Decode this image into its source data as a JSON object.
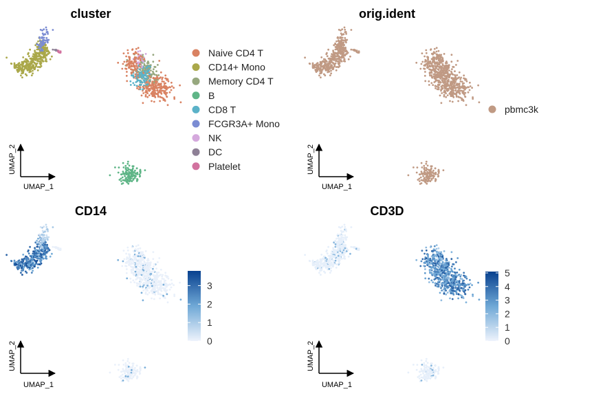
{
  "chart_data": [
    {
      "type": "scatter",
      "title": "cluster",
      "xlabel": "UMAP_1",
      "ylabel": "UMAP_2",
      "color_by": "cluster",
      "legend_position": "right",
      "legend": [
        {
          "name": "Naive CD4 T",
          "color": "#D98262"
        },
        {
          "name": "CD14+ Mono",
          "color": "#AAA84A"
        },
        {
          "name": "Memory CD4 T",
          "color": "#97A87F"
        },
        {
          "name": "B",
          "color": "#5FB587"
        },
        {
          "name": "CD8 T",
          "color": "#5BB2C8"
        },
        {
          "name": "FCGR3A+ Mono",
          "color": "#7B8CD3"
        },
        {
          "name": "NK",
          "color": "#D5A9DD"
        },
        {
          "name": "DC",
          "color": "#8E8096"
        },
        {
          "name": "Platelet",
          "color": "#D2729F"
        }
      ]
    },
    {
      "type": "scatter",
      "title": "orig.ident",
      "xlabel": "UMAP_1",
      "ylabel": "UMAP_2",
      "color_by": "orig.ident",
      "legend_position": "right",
      "legend": [
        {
          "name": "pbmc3k",
          "color": "#C09A84"
        }
      ]
    },
    {
      "type": "scatter",
      "title": "CD14",
      "xlabel": "UMAP_1",
      "ylabel": "UMAP_2",
      "color_by": "expression",
      "colorbar": {
        "min": 0,
        "max": 3.8,
        "ticks": [
          0,
          1,
          2,
          3
        ],
        "low_color": "#EEF3FC",
        "high_color": "#08418F"
      }
    },
    {
      "type": "scatter",
      "title": "CD3D",
      "xlabel": "UMAP_1",
      "ylabel": "UMAP_2",
      "color_by": "expression",
      "colorbar": {
        "min": 0,
        "max": 5.1,
        "ticks": [
          0,
          1,
          2,
          3,
          4,
          5
        ],
        "low_color": "#EEF3FC",
        "high_color": "#08418F"
      }
    }
  ]
}
